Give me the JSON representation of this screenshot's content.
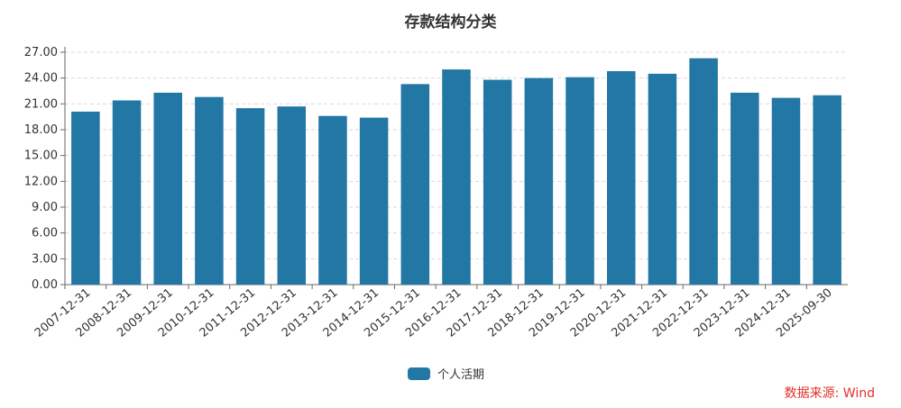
{
  "colors": {
    "bar": "#2277a5",
    "grid": "#d9d9d9",
    "axis": "#666666",
    "text": "#333333",
    "source": "#e0322b"
  },
  "chart_data": {
    "type": "bar",
    "title": "存款结构分类",
    "xlabel": "",
    "ylabel": "",
    "ylim": [
      0,
      27
    ],
    "y_ticks": [
      "0.00",
      "3.00",
      "6.00",
      "9.00",
      "12.00",
      "15.00",
      "18.00",
      "21.00",
      "24.00",
      "27.00"
    ],
    "grid": true,
    "legend_position": "bottom",
    "categories": [
      "2007-12-31",
      "2008-12-31",
      "2009-12-31",
      "2010-12-31",
      "2011-12-31",
      "2012-12-31",
      "2013-12-31",
      "2014-12-31",
      "2015-12-31",
      "2016-12-31",
      "2017-12-31",
      "2018-12-31",
      "2019-12-31",
      "2020-12-31",
      "2021-12-31",
      "2022-12-31",
      "2023-12-31",
      "2024-12-31",
      "2025-09-30"
    ],
    "series": [
      {
        "name": "个人活期",
        "values": [
          20.1,
          21.4,
          22.3,
          21.8,
          20.5,
          20.7,
          19.6,
          19.4,
          23.3,
          25.0,
          23.8,
          24.0,
          24.1,
          24.8,
          24.5,
          26.3,
          22.3,
          21.7,
          22.0
        ]
      }
    ],
    "source": "数据来源: Wind"
  }
}
